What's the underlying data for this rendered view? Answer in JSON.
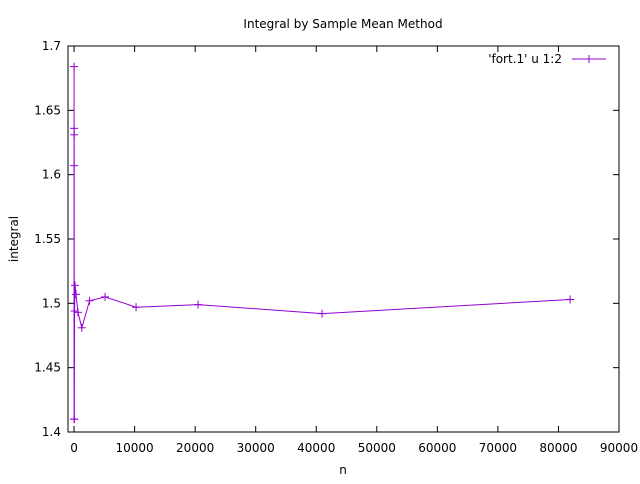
{
  "chart_data": {
    "type": "line",
    "title": "Integral by Sample Mean Method",
    "xlabel": "n",
    "ylabel": "integral",
    "xlim": [
      -1000,
      90000
    ],
    "ylim": [
      1.4,
      1.7
    ],
    "x_ticks": [
      0,
      10000,
      20000,
      30000,
      40000,
      50000,
      60000,
      70000,
      80000,
      90000
    ],
    "y_ticks": [
      1.4,
      1.45,
      1.5,
      1.55,
      1.6,
      1.65,
      1.7
    ],
    "x_tick_labels": [
      "0",
      "10000",
      "20000",
      "30000",
      "40000",
      "50000",
      "60000",
      "70000",
      "80000",
      "90000"
    ],
    "y_tick_labels": [
      "1.4",
      "1.45",
      "1.5",
      "1.55",
      "1.6",
      "1.65",
      "1.7"
    ],
    "grid": false,
    "legend_position": "top-right",
    "series": [
      {
        "name": "'fort.1' u 1:2",
        "color": "#9400d3",
        "marker": "plus",
        "x": [
          1,
          3,
          5,
          10,
          20,
          40,
          80,
          160,
          320,
          640,
          1280,
          2560,
          5120,
          10240,
          20480,
          40960,
          81920
        ],
        "y": [
          1.684,
          1.41,
          1.607,
          1.636,
          1.631,
          1.41,
          1.494,
          1.514,
          1.507,
          1.493,
          1.481,
          1.502,
          1.505,
          1.497,
          1.499,
          1.492,
          1.503
        ]
      }
    ]
  }
}
